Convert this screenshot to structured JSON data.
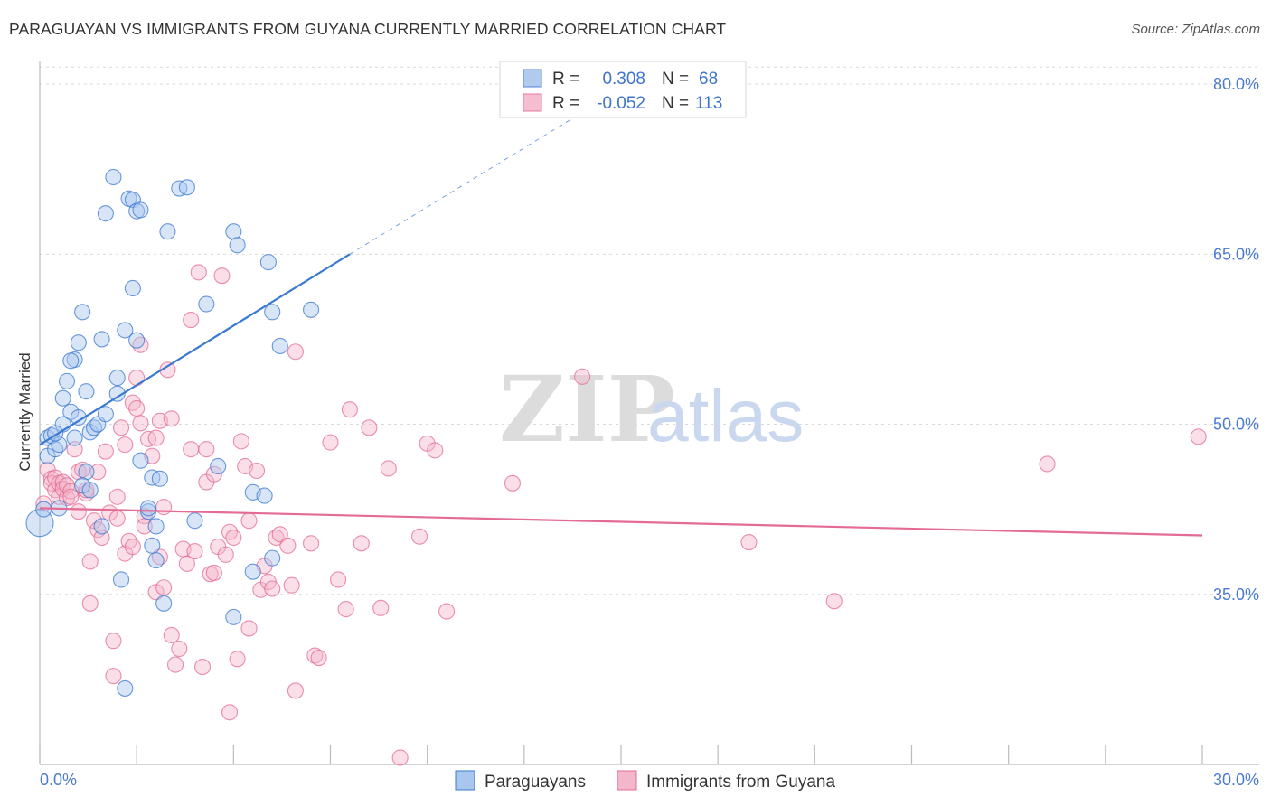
{
  "title": "PARAGUAYAN VS IMMIGRANTS FROM GUYANA CURRENTLY MARRIED CORRELATION CHART",
  "source": "Source: ZipAtlas.com",
  "watermark": {
    "zip": "ZIP",
    "atlas": "atlas"
  },
  "colors": {
    "blue": "#3a78d2",
    "blue_fill": "#a9c6ee",
    "pink": "#e36b94",
    "pink_fill": "#f4b6cb",
    "axis_label": "#4a7bd0",
    "grid": "#d9d9d9"
  },
  "legend": {
    "rows": [
      {
        "r_label": "R =",
        "r_value": "0.308",
        "n_label": "N =",
        "n_value": "68"
      },
      {
        "r_label": "R =",
        "r_value": "-0.052",
        "n_label": "N =",
        "n_value": "113"
      }
    ]
  },
  "chart_data": {
    "type": "scatter",
    "title": "PARAGUAYAN VS IMMIGRANTS FROM GUYANA CURRENTLY MARRIED CORRELATION CHART",
    "xlabel": "",
    "ylabel": "Currently Married",
    "xlim": [
      0,
      30
    ],
    "ylim": [
      20,
      82
    ],
    "x_tick_labels": [
      "0.0%",
      "30.0%"
    ],
    "y_ticks": [
      35,
      50,
      65,
      80
    ],
    "y_tick_labels": [
      "35.0%",
      "50.0%",
      "65.0%",
      "80.0%"
    ],
    "legend_position": "bottom",
    "series": [
      {
        "name": "Paraguayans",
        "r": 0.308,
        "n": 68,
        "trend": {
          "x0": 0.0,
          "y0": 48.2,
          "x1": 8.0,
          "y1": 65.0,
          "dash_to_x": 14.0,
          "dash_to_y": 77.5
        },
        "points": [
          [
            0.0,
            41.3
          ],
          [
            0.1,
            42.5
          ],
          [
            0.2,
            47.2
          ],
          [
            0.2,
            48.8
          ],
          [
            0.3,
            49.0
          ],
          [
            0.4,
            47.8
          ],
          [
            0.5,
            48.2
          ],
          [
            0.6,
            52.3
          ],
          [
            0.5,
            42.6
          ],
          [
            0.6,
            50.0
          ],
          [
            0.4,
            49.2
          ],
          [
            0.7,
            53.8
          ],
          [
            0.8,
            51.1
          ],
          [
            0.9,
            55.7
          ],
          [
            0.8,
            55.6
          ],
          [
            0.9,
            48.8
          ],
          [
            1.0,
            57.2
          ],
          [
            1.1,
            59.9
          ],
          [
            1.0,
            50.6
          ],
          [
            1.2,
            52.9
          ],
          [
            1.3,
            49.3
          ],
          [
            1.2,
            45.8
          ],
          [
            1.1,
            44.6
          ],
          [
            1.3,
            44.2
          ],
          [
            1.4,
            49.7
          ],
          [
            1.5,
            50.0
          ],
          [
            1.6,
            57.5
          ],
          [
            1.7,
            50.9
          ],
          [
            1.6,
            41.0
          ],
          [
            1.7,
            68.6
          ],
          [
            1.9,
            71.8
          ],
          [
            2.0,
            52.7
          ],
          [
            2.0,
            54.1
          ],
          [
            2.1,
            36.3
          ],
          [
            2.2,
            58.3
          ],
          [
            2.3,
            69.9
          ],
          [
            2.4,
            69.8
          ],
          [
            2.4,
            62.0
          ],
          [
            2.5,
            57.4
          ],
          [
            2.5,
            68.8
          ],
          [
            2.6,
            68.9
          ],
          [
            2.6,
            46.8
          ],
          [
            2.8,
            42.3
          ],
          [
            2.9,
            45.3
          ],
          [
            2.9,
            39.3
          ],
          [
            3.0,
            41.0
          ],
          [
            3.1,
            45.2
          ],
          [
            3.2,
            34.2
          ],
          [
            3.3,
            67.0
          ],
          [
            2.2,
            26.7
          ],
          [
            2.8,
            42.6
          ],
          [
            3.6,
            70.8
          ],
          [
            3.8,
            70.9
          ],
          [
            4.3,
            60.6
          ],
          [
            3.0,
            38.0
          ],
          [
            4.0,
            41.5
          ],
          [
            4.6,
            46.3
          ],
          [
            5.0,
            33.0
          ],
          [
            5.0,
            67.0
          ],
          [
            5.1,
            65.8
          ],
          [
            5.5,
            44.0
          ],
          [
            5.8,
            43.7
          ],
          [
            6.0,
            38.2
          ],
          [
            5.5,
            37.0
          ],
          [
            5.9,
            64.3
          ],
          [
            6.0,
            59.9
          ],
          [
            6.2,
            56.9
          ],
          [
            7.0,
            60.1
          ]
        ]
      },
      {
        "name": "Immigrants from Guyana",
        "r": -0.052,
        "n": 113,
        "trend": {
          "x0": 0.0,
          "y0": 42.6,
          "x1": 30.0,
          "y1": 40.2
        },
        "points": [
          [
            0.1,
            43.0
          ],
          [
            0.2,
            46.0
          ],
          [
            0.3,
            45.2
          ],
          [
            0.3,
            44.8
          ],
          [
            0.4,
            45.3
          ],
          [
            0.4,
            44.2
          ],
          [
            0.5,
            44.8
          ],
          [
            0.5,
            43.6
          ],
          [
            0.6,
            44.9
          ],
          [
            0.6,
            44.3
          ],
          [
            0.7,
            43.5
          ],
          [
            0.7,
            44.6
          ],
          [
            0.8,
            44.1
          ],
          [
            0.8,
            43.6
          ],
          [
            0.9,
            47.8
          ],
          [
            1.0,
            45.8
          ],
          [
            1.0,
            42.3
          ],
          [
            1.1,
            46.0
          ],
          [
            1.2,
            43.9
          ],
          [
            1.2,
            44.2
          ],
          [
            1.3,
            34.2
          ],
          [
            1.3,
            37.9
          ],
          [
            1.4,
            41.5
          ],
          [
            1.5,
            45.8
          ],
          [
            1.5,
            40.7
          ],
          [
            1.6,
            40.0
          ],
          [
            1.7,
            47.6
          ],
          [
            1.8,
            42.2
          ],
          [
            1.9,
            27.8
          ],
          [
            1.9,
            30.9
          ],
          [
            2.0,
            41.7
          ],
          [
            2.0,
            43.6
          ],
          [
            2.1,
            49.7
          ],
          [
            2.2,
            48.2
          ],
          [
            2.2,
            38.6
          ],
          [
            2.3,
            39.7
          ],
          [
            2.4,
            39.2
          ],
          [
            2.4,
            51.9
          ],
          [
            2.5,
            51.4
          ],
          [
            2.5,
            54.1
          ],
          [
            2.6,
            57.0
          ],
          [
            2.6,
            50.1
          ],
          [
            2.7,
            41.9
          ],
          [
            2.7,
            41.0
          ],
          [
            2.8,
            48.7
          ],
          [
            2.9,
            47.2
          ],
          [
            3.0,
            35.2
          ],
          [
            3.0,
            48.8
          ],
          [
            3.1,
            50.3
          ],
          [
            3.1,
            38.3
          ],
          [
            3.2,
            35.6
          ],
          [
            3.2,
            42.7
          ],
          [
            3.3,
            54.8
          ],
          [
            3.4,
            50.5
          ],
          [
            3.4,
            31.4
          ],
          [
            3.5,
            28.8
          ],
          [
            3.6,
            30.2
          ],
          [
            3.7,
            39.0
          ],
          [
            3.8,
            37.7
          ],
          [
            3.9,
            59.2
          ],
          [
            3.9,
            47.8
          ],
          [
            4.0,
            38.8
          ],
          [
            4.1,
            63.4
          ],
          [
            4.2,
            28.6
          ],
          [
            4.3,
            47.8
          ],
          [
            4.3,
            44.9
          ],
          [
            4.4,
            36.8
          ],
          [
            4.5,
            45.6
          ],
          [
            4.6,
            39.2
          ],
          [
            4.7,
            63.1
          ],
          [
            4.8,
            38.5
          ],
          [
            4.9,
            40.5
          ],
          [
            4.9,
            24.6
          ],
          [
            5.0,
            40.0
          ],
          [
            5.1,
            29.3
          ],
          [
            5.2,
            48.5
          ],
          [
            5.3,
            46.3
          ],
          [
            5.4,
            41.5
          ],
          [
            5.4,
            32.0
          ],
          [
            5.6,
            45.9
          ],
          [
            5.7,
            35.4
          ],
          [
            5.8,
            37.5
          ],
          [
            5.9,
            36.1
          ],
          [
            6.0,
            35.5
          ],
          [
            6.1,
            40.0
          ],
          [
            6.2,
            40.3
          ],
          [
            6.4,
            39.3
          ],
          [
            6.5,
            35.8
          ],
          [
            6.6,
            56.4
          ],
          [
            6.6,
            26.5
          ],
          [
            7.0,
            39.5
          ],
          [
            7.1,
            29.6
          ],
          [
            7.2,
            29.4
          ],
          [
            7.5,
            48.4
          ],
          [
            7.7,
            36.3
          ],
          [
            7.9,
            33.7
          ],
          [
            8.0,
            51.3
          ],
          [
            8.3,
            39.5
          ],
          [
            8.5,
            49.7
          ],
          [
            8.8,
            33.8
          ],
          [
            9.0,
            46.1
          ],
          [
            9.3,
            20.6
          ],
          [
            9.8,
            40.1
          ],
          [
            10.0,
            48.3
          ],
          [
            10.2,
            47.7
          ],
          [
            10.5,
            33.5
          ],
          [
            12.2,
            44.8
          ],
          [
            14.0,
            54.2
          ],
          [
            18.3,
            39.6
          ],
          [
            20.5,
            34.4
          ],
          [
            26.0,
            46.5
          ],
          [
            29.9,
            48.9
          ],
          [
            4.5,
            36.9
          ]
        ]
      }
    ]
  },
  "bottom_legend": [
    {
      "label": "Paraguayans"
    },
    {
      "label": "Immigrants from Guyana"
    }
  ]
}
